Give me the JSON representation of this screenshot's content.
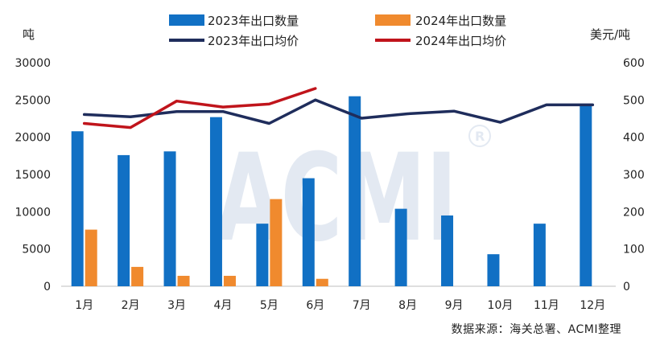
{
  "chart_data": {
    "type": "bar",
    "categories": [
      "1月",
      "2月",
      "3月",
      "4月",
      "5月",
      "6月",
      "7月",
      "8月",
      "9月",
      "10月",
      "11月",
      "12月"
    ],
    "series": [
      {
        "name": "2023年出口数量",
        "kind": "bar",
        "axis": "left",
        "color": "#1170C4",
        "values": [
          20800,
          17600,
          18100,
          22700,
          8400,
          14500,
          25500,
          10400,
          9500,
          4300,
          8400,
          24500
        ]
      },
      {
        "name": "2024年出口数量",
        "kind": "bar",
        "axis": "left",
        "color": "#F08A2E",
        "values": [
          7600,
          2600,
          1400,
          1400,
          11700,
          1000,
          null,
          null,
          null,
          null,
          null,
          null
        ]
      },
      {
        "name": "2023年出口均价",
        "kind": "line",
        "axis": "right",
        "color": "#1F2D5C",
        "values": [
          461,
          455,
          469,
          469,
          437,
          500,
          451,
          463,
          470,
          440,
          487,
          487
        ]
      },
      {
        "name": "2024年出口均价",
        "kind": "line",
        "axis": "right",
        "color": "#C0141B",
        "values": [
          437,
          426,
          497,
          481,
          489,
          531,
          null,
          null,
          null,
          null,
          null,
          null
        ]
      }
    ],
    "left_axis": {
      "label": "吨",
      "ylim": [
        0,
        30000
      ],
      "ticks": [
        0,
        5000,
        10000,
        15000,
        20000,
        25000,
        30000
      ]
    },
    "right_axis": {
      "label": "美元/吨",
      "ylim": [
        0,
        600
      ],
      "ticks": [
        0,
        100,
        200,
        300,
        400,
        500,
        600
      ]
    },
    "legend_position": "top",
    "grid": false,
    "watermark": "ACMI",
    "source": "数据来源：海关总署、ACMI整理"
  }
}
